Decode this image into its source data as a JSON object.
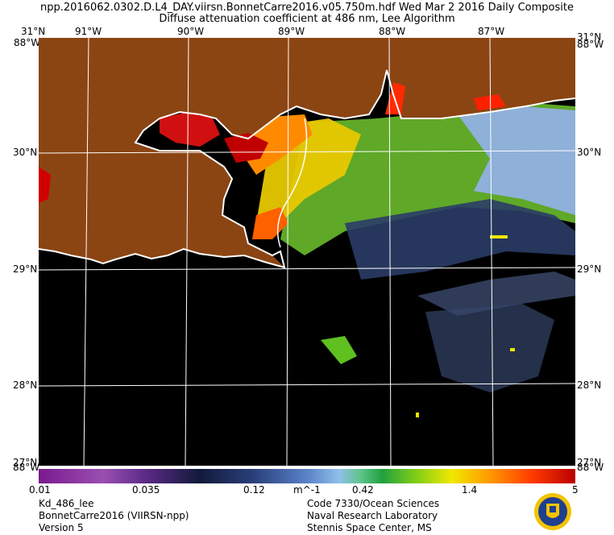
{
  "title": {
    "line1": "npp.2016062.0302.D.L4_DAY.viirsn.BonnetCarre2016.v05.750m.hdf     Wed Mar  2 2016 Daily Composite",
    "line2": "Diffuse attenuation coefficient at 486 nm, Lee Algorithm"
  },
  "map": {
    "lat_labels": [
      "31°N",
      "30°N",
      "29°N",
      "28°N",
      "27°N"
    ],
    "lon_labels": [
      "91°W",
      "90°W",
      "89°W",
      "88°W",
      "87°W"
    ],
    "corner_left_top": "31°N",
    "corner_left_top2": "88°W",
    "corner_left_bottom": "27°N",
    "corner_left_bottom2": "88°W",
    "colors": {
      "land": "#8b4513",
      "water": "#000000",
      "coast": "#ffffff",
      "grid": "#ffffff"
    }
  },
  "colorbar": {
    "ticks": [
      "0.01",
      "0.035",
      "0.12",
      "m^-1",
      "0.42",
      "1.4",
      "5"
    ]
  },
  "footer": {
    "left": [
      "Kd_486_lee",
      "BonnetCarre2016 (VIIRSN-npp)",
      "Version 5"
    ],
    "right": [
      "Code 7330/Ocean Sciences",
      "Naval Research Laboratory",
      "Stennis Space Center, MS"
    ]
  }
}
